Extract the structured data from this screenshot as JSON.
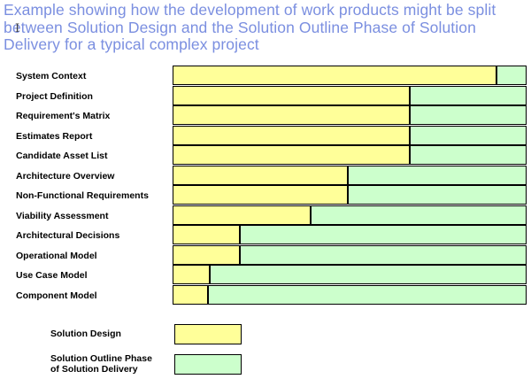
{
  "title_lines": [
    "Example showing how the development of work products might be split",
    "between Solution Design and the Solution Outline Phase of Solution",
    "Delivery for a typical complex project"
  ],
  "cursor_glyph": "I",
  "colors": {
    "solution_design": "#ffff99",
    "solution_outline": "#ccffcc",
    "title": "#7b8fe0"
  },
  "legend": [
    {
      "label": "Solution Design",
      "color": "#ffff99"
    },
    {
      "label": "Solution Outline Phase\nof Solution Delivery",
      "color": "#ccffcc"
    }
  ],
  "chart_data": {
    "type": "bar",
    "orientation": "horizontal",
    "stacked": true,
    "title": "Example showing how the development of work products might be split between Solution Design and the Solution Outline Phase of Solution Delivery for a typical complex project",
    "xlim": [
      0,
      100
    ],
    "grid": false,
    "legend_position": "bottom-left",
    "categories": [
      "System Context",
      "Project Definition",
      "Requirement's Matrix",
      "Estimates Report",
      "Candidate Asset List",
      "Architecture Overview",
      "Non-Functional Requirements",
      "Viability Assessment",
      "Architectural Decisions",
      "Operational Model",
      "Use Case Model",
      "Component Model"
    ],
    "series": [
      {
        "name": "Solution Design",
        "color": "#ffff99",
        "values": [
          91.5,
          67,
          67,
          67,
          67,
          49.5,
          49.5,
          39,
          19,
          19,
          10.5,
          10
        ]
      },
      {
        "name": "Solution Outline Phase\nof Solution Delivery",
        "color": "#ccffcc",
        "values": [
          8.5,
          33,
          33,
          33,
          33,
          50.5,
          50.5,
          61,
          81,
          81,
          89.5,
          90
        ]
      }
    ]
  }
}
